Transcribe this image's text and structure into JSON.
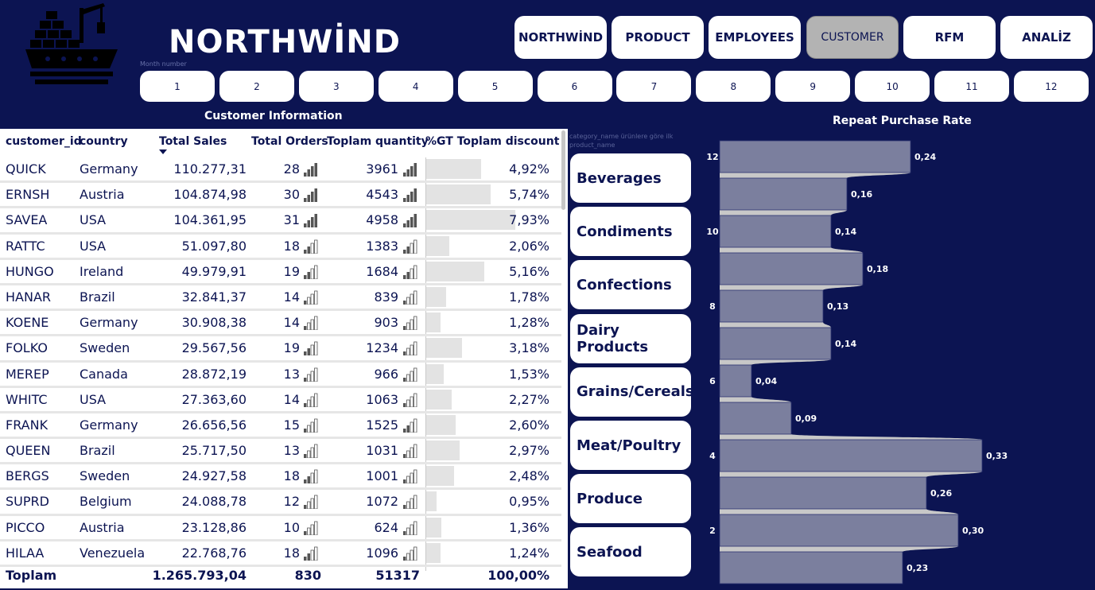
{
  "app": {
    "title": "NORTHWİND"
  },
  "nav": [
    {
      "label": "NORTHWİND",
      "active": false
    },
    {
      "label": "PRODUCT",
      "active": false
    },
    {
      "label": "EMPLOYEES",
      "active": false
    },
    {
      "label": "CUSTOMER",
      "active": true
    },
    {
      "label": "RFM",
      "active": false
    },
    {
      "label": "ANALİZ",
      "active": false
    }
  ],
  "month_filter": {
    "label": "Month number",
    "months": [
      "1",
      "2",
      "3",
      "4",
      "5",
      "6",
      "7",
      "8",
      "9",
      "10",
      "11",
      "12"
    ]
  },
  "customer_table": {
    "title": "Customer Information",
    "columns": [
      "customer_id",
      "country",
      "Total Sales",
      "Total Orders",
      "Toplam quantity",
      "%GT Toplam discount"
    ],
    "sorted_column": "Total Sales",
    "rows": [
      {
        "customer_id": "QUICK",
        "country": "Germany",
        "total_sales": "110.277,31",
        "total_orders": "28",
        "orders_level": 4,
        "quantity": "3961",
        "quantity_level": 4,
        "discount": "4,92%",
        "discount_pct": 4.92
      },
      {
        "customer_id": "ERNSH",
        "country": "Austria",
        "total_sales": "104.874,98",
        "total_orders": "30",
        "orders_level": 4,
        "quantity": "4543",
        "quantity_level": 4,
        "discount": "5,74%",
        "discount_pct": 5.74
      },
      {
        "customer_id": "SAVEA",
        "country": "USA",
        "total_sales": "104.361,95",
        "total_orders": "31",
        "orders_level": 4,
        "quantity": "4958",
        "quantity_level": 4,
        "discount": "7,93%",
        "discount_pct": 7.93
      },
      {
        "customer_id": "RATTC",
        "country": "USA",
        "total_sales": "51.097,80",
        "total_orders": "18",
        "orders_level": 2,
        "quantity": "1383",
        "quantity_level": 2,
        "discount": "2,06%",
        "discount_pct": 2.06
      },
      {
        "customer_id": "HUNGO",
        "country": "Ireland",
        "total_sales": "49.979,91",
        "total_orders": "19",
        "orders_level": 2,
        "quantity": "1684",
        "quantity_level": 2,
        "discount": "5,16%",
        "discount_pct": 5.16
      },
      {
        "customer_id": "HANAR",
        "country": "Brazil",
        "total_sales": "32.841,37",
        "total_orders": "14",
        "orders_level": 1,
        "quantity": "839",
        "quantity_level": 1,
        "discount": "1,78%",
        "discount_pct": 1.78
      },
      {
        "customer_id": "KOENE",
        "country": "Germany",
        "total_sales": "30.908,38",
        "total_orders": "14",
        "orders_level": 1,
        "quantity": "903",
        "quantity_level": 1,
        "discount": "1,28%",
        "discount_pct": 1.28
      },
      {
        "customer_id": "FOLKO",
        "country": "Sweden",
        "total_sales": "29.567,56",
        "total_orders": "19",
        "orders_level": 2,
        "quantity": "1234",
        "quantity_level": 1,
        "discount": "3,18%",
        "discount_pct": 3.18
      },
      {
        "customer_id": "MEREP",
        "country": "Canada",
        "total_sales": "28.872,19",
        "total_orders": "13",
        "orders_level": 1,
        "quantity": "966",
        "quantity_level": 1,
        "discount": "1,53%",
        "discount_pct": 1.53
      },
      {
        "customer_id": "WHITC",
        "country": "USA",
        "total_sales": "27.363,60",
        "total_orders": "14",
        "orders_level": 1,
        "quantity": "1063",
        "quantity_level": 1,
        "discount": "2,27%",
        "discount_pct": 2.27
      },
      {
        "customer_id": "FRANK",
        "country": "Germany",
        "total_sales": "26.656,56",
        "total_orders": "15",
        "orders_level": 1,
        "quantity": "1525",
        "quantity_level": 2,
        "discount": "2,60%",
        "discount_pct": 2.6
      },
      {
        "customer_id": "QUEEN",
        "country": "Brazil",
        "total_sales": "25.717,50",
        "total_orders": "13",
        "orders_level": 1,
        "quantity": "1031",
        "quantity_level": 1,
        "discount": "2,97%",
        "discount_pct": 2.97
      },
      {
        "customer_id": "BERGS",
        "country": "Sweden",
        "total_sales": "24.927,58",
        "total_orders": "18",
        "orders_level": 2,
        "quantity": "1001",
        "quantity_level": 1,
        "discount": "2,48%",
        "discount_pct": 2.48
      },
      {
        "customer_id": "SUPRD",
        "country": "Belgium",
        "total_sales": "24.088,78",
        "total_orders": "12",
        "orders_level": 1,
        "quantity": "1072",
        "quantity_level": 1,
        "discount": "0,95%",
        "discount_pct": 0.95
      },
      {
        "customer_id": "PICCO",
        "country": "Austria",
        "total_sales": "23.128,86",
        "total_orders": "10",
        "orders_level": 1,
        "quantity": "624",
        "quantity_level": 1,
        "discount": "1,36%",
        "discount_pct": 1.36
      },
      {
        "customer_id": "HILAA",
        "country": "Venezuela",
        "total_sales": "22.768,76",
        "total_orders": "18",
        "orders_level": 2,
        "quantity": "1096",
        "quantity_level": 1,
        "discount": "1,24%",
        "discount_pct": 1.24
      }
    ],
    "total": {
      "label": "Toplam",
      "total_sales": "1.265.793,04",
      "total_orders": "830",
      "quantity": "51317",
      "discount": "100,00%"
    }
  },
  "category_filter": {
    "label": "category_name ürünlere göre ilk product_name",
    "items": [
      "Beverages",
      "Condiments",
      "Confections",
      "Dairy Products",
      "Grains/Cereals",
      "Meat/Poultry",
      "Produce",
      "Seafood"
    ]
  },
  "chart_data": {
    "type": "bar",
    "orientation": "horizontal",
    "title": "Repeat Purchase Rate",
    "categories": [
      "12",
      "11",
      "10",
      "9",
      "8",
      "7",
      "6",
      "5",
      "4",
      "3",
      "2",
      "1"
    ],
    "values": [
      0.24,
      0.16,
      0.14,
      0.18,
      0.13,
      0.14,
      0.04,
      0.09,
      0.33,
      0.26,
      0.3,
      0.23
    ],
    "value_labels": [
      "0,24",
      "0,16",
      "0,14",
      "0,18",
      "0,13",
      "0,14",
      "0,04",
      "0,09",
      "0,33",
      "0,26",
      "0,30",
      "0,23"
    ],
    "tick_labels": [
      "12",
      "",
      "10",
      "",
      "8",
      "",
      "6",
      "",
      "4",
      "",
      "2",
      ""
    ],
    "xlim": [
      0,
      0.4
    ],
    "colors": {
      "bar": "#7b7f9e",
      "ribbon": "#c8c8c8",
      "label": "#ffffff"
    }
  }
}
